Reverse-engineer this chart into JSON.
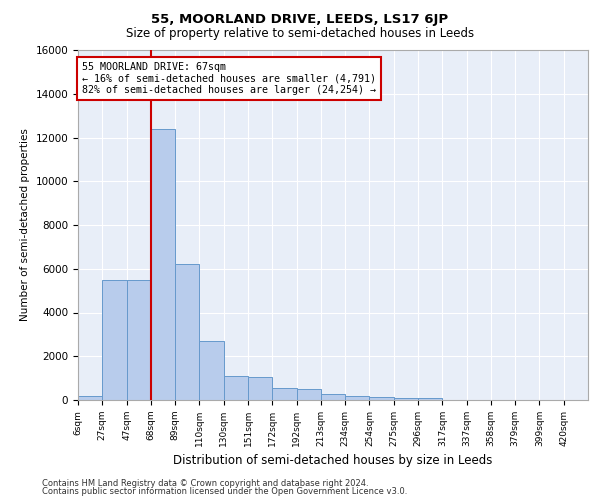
{
  "title1": "55, MOORLAND DRIVE, LEEDS, LS17 6JP",
  "title2": "Size of property relative to semi-detached houses in Leeds",
  "xlabel": "Distribution of semi-detached houses by size in Leeds",
  "ylabel": "Number of semi-detached properties",
  "footnote1": "Contains HM Land Registry data © Crown copyright and database right 2024.",
  "footnote2": "Contains public sector information licensed under the Open Government Licence v3.0.",
  "property_label": "55 MOORLAND DRIVE: 67sqm",
  "pct_smaller": 16,
  "n_smaller": 4791,
  "pct_larger": 82,
  "n_larger": 24254,
  "bin_labels": [
    "6sqm",
    "27sqm",
    "47sqm",
    "68sqm",
    "89sqm",
    "110sqm",
    "130sqm",
    "151sqm",
    "172sqm",
    "192sqm",
    "213sqm",
    "234sqm",
    "254sqm",
    "275sqm",
    "296sqm",
    "317sqm",
    "337sqm",
    "358sqm",
    "379sqm",
    "399sqm",
    "420sqm"
  ],
  "bar_values": [
    200,
    5500,
    5500,
    12400,
    6200,
    2700,
    1100,
    1050,
    550,
    500,
    280,
    190,
    150,
    100,
    80,
    0,
    0,
    0,
    0,
    0,
    0
  ],
  "bar_color": "#b8ccec",
  "bar_edge_color": "#6699cc",
  "vline_color": "#cc0000",
  "vline_position": 3,
  "annotation_box_color": "#cc0000",
  "background_color": "#e8eef8",
  "ylim": [
    0,
    16000
  ],
  "yticks": [
    0,
    2000,
    4000,
    6000,
    8000,
    10000,
    12000,
    14000,
    16000
  ]
}
